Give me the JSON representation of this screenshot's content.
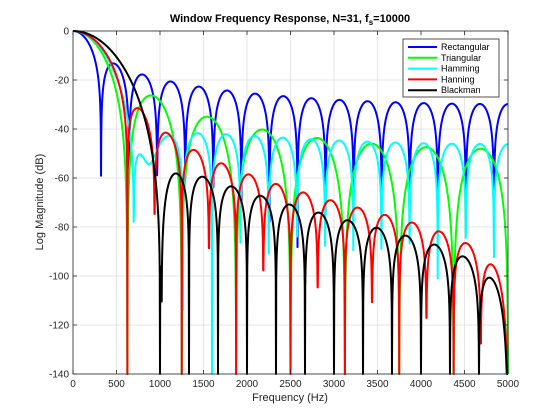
{
  "chart_data": {
    "type": "line",
    "title": "Window Frequency Response,  N=31, f",
    "title_subscript": "s",
    "title_suffix": "=10000",
    "xlabel": "Frequency (Hz)",
    "ylabel": "Log Magnitude (dB)",
    "xlim": [
      0,
      5000
    ],
    "ylim": [
      -140,
      0
    ],
    "x_ticks": [
      0,
      500,
      1000,
      1500,
      2000,
      2500,
      3000,
      3500,
      4000,
      4500,
      5000
    ],
    "y_ticks": [
      0,
      -20,
      -40,
      -60,
      -80,
      -100,
      -120,
      -140
    ],
    "grid": true,
    "legend_position": "top-right",
    "N": 31,
    "fs": 10000,
    "series": [
      {
        "name": "Rectangular",
        "color": "#0000ff",
        "window": "rectangular"
      },
      {
        "name": "Triangular",
        "color": "#00ff00",
        "window": "triangular"
      },
      {
        "name": "Hamming",
        "color": "#00ffff",
        "window": "hamming"
      },
      {
        "name": "Hanning",
        "color": "#ff0000",
        "window": "hanning"
      },
      {
        "name": "Blackman",
        "color": "#000000",
        "window": "blackman"
      }
    ]
  }
}
